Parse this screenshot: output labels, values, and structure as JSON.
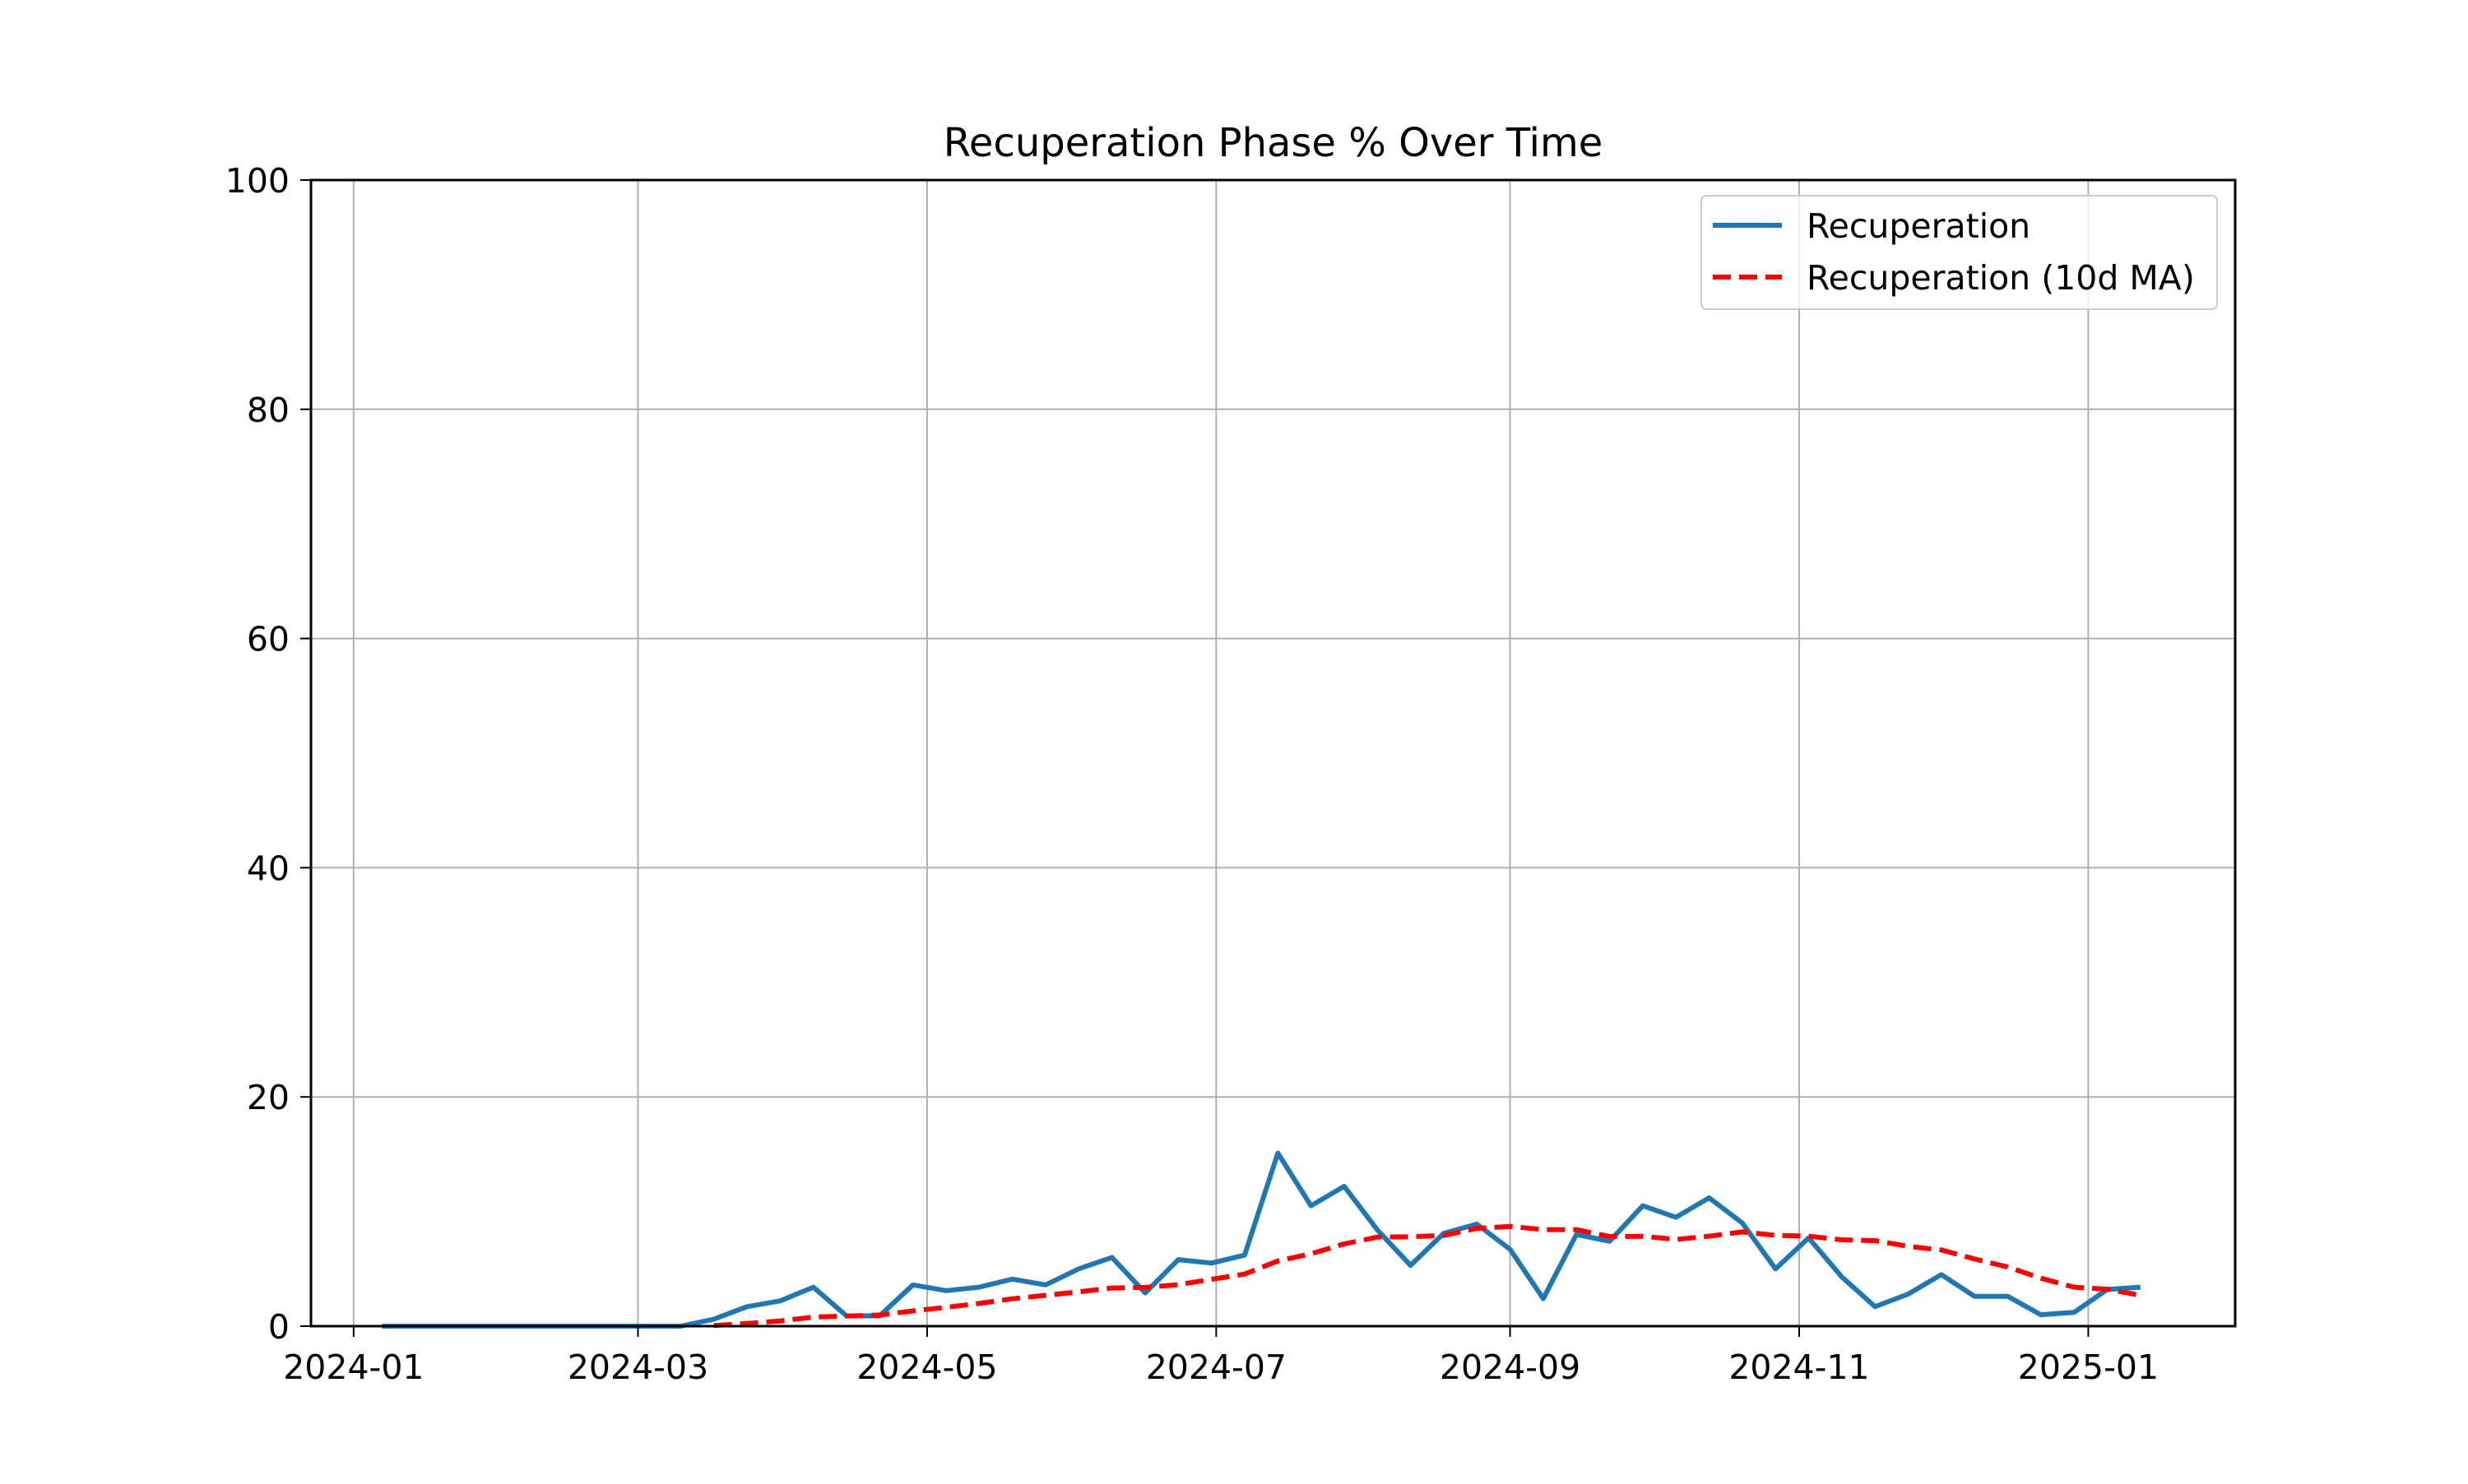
{
  "chart_data": {
    "type": "line",
    "title": "Recuperation Phase % Over Time",
    "xlabel": "",
    "ylabel": "",
    "x_axis_type": "date",
    "xlim": [
      "2023-12-23",
      "2025-02-01"
    ],
    "ylim": [
      0,
      100
    ],
    "grid": true,
    "legend_position": "top-right",
    "x_ticks": [
      "2024-01",
      "2024-03",
      "2024-05",
      "2024-07",
      "2024-09",
      "2024-11",
      "2025-01"
    ],
    "y_ticks": [
      0,
      20,
      40,
      60,
      80,
      100
    ],
    "x": [
      "2024-01-07",
      "2024-01-14",
      "2024-01-21",
      "2024-01-28",
      "2024-02-04",
      "2024-02-11",
      "2024-02-18",
      "2024-02-25",
      "2024-03-03",
      "2024-03-10",
      "2024-03-17",
      "2024-03-24",
      "2024-03-31",
      "2024-04-07",
      "2024-04-14",
      "2024-04-21",
      "2024-04-28",
      "2024-05-05",
      "2024-05-12",
      "2024-05-19",
      "2024-05-26",
      "2024-06-02",
      "2024-06-09",
      "2024-06-16",
      "2024-06-23",
      "2024-06-30",
      "2024-07-07",
      "2024-07-14",
      "2024-07-21",
      "2024-07-28",
      "2024-08-04",
      "2024-08-11",
      "2024-08-18",
      "2024-08-25",
      "2024-09-01",
      "2024-09-08",
      "2024-09-15",
      "2024-09-22",
      "2024-09-29",
      "2024-10-06",
      "2024-10-13",
      "2024-10-20",
      "2024-10-27",
      "2024-11-03",
      "2024-11-10",
      "2024-11-17",
      "2024-11-24",
      "2024-12-01",
      "2024-12-08",
      "2024-12-15",
      "2024-12-22",
      "2024-12-29",
      "2025-01-05",
      "2025-01-12"
    ],
    "series": [
      {
        "name": "Recuperation",
        "color": "#1f77b4",
        "style": "solid",
        "values": [
          0,
          0,
          0,
          0,
          0,
          0,
          0,
          0,
          0,
          0,
          0.6,
          1.7,
          2.2,
          3.4,
          0.9,
          0.9,
          3.6,
          3.1,
          3.4,
          4.1,
          3.6,
          5.0,
          6.0,
          2.9,
          5.8,
          5.5,
          6.2,
          15.1,
          10.5,
          12.2,
          8.4,
          5.3,
          8.1,
          8.9,
          6.7,
          2.4,
          8.0,
          7.4,
          10.5,
          9.5,
          11.2,
          9.0,
          5.0,
          7.7,
          4.3,
          1.7,
          2.8,
          4.5,
          2.6,
          2.6,
          1.0,
          1.2,
          3.2,
          3.4
        ]
      },
      {
        "name": "Recuperation (10d MA)",
        "color": "#ff0000",
        "style": "dashed",
        "values": [
          null,
          null,
          null,
          null,
          null,
          null,
          null,
          null,
          null,
          null,
          0.06,
          0.23,
          0.45,
          0.79,
          0.88,
          0.97,
          1.33,
          1.64,
          1.98,
          2.39,
          2.69,
          2.99,
          3.33,
          3.38,
          3.62,
          4.08,
          4.54,
          5.69,
          6.31,
          7.18,
          7.77,
          7.8,
          7.91,
          8.53,
          8.7,
          8.42,
          8.42,
          7.82,
          7.84,
          7.57,
          7.85,
          8.22,
          7.92,
          7.85,
          7.53,
          7.46,
          6.96,
          6.65,
          5.86,
          5.16,
          4.18,
          3.4,
          3.22,
          2.69
        ]
      }
    ]
  }
}
